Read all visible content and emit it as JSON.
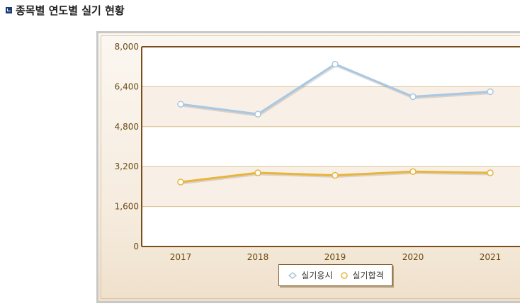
{
  "page": {
    "title": "종목별 연도별 실기 현황"
  },
  "chart_data": {
    "type": "line",
    "title": "",
    "xlabel": "",
    "ylabel": "",
    "categories": [
      "2017",
      "2018",
      "2019",
      "2020",
      "2021"
    ],
    "ylim": [
      0,
      8000
    ],
    "yticks": [
      "8,000",
      "6,400",
      "4,800",
      "3,200",
      "1,600",
      "0"
    ],
    "ytick_values": [
      8000,
      6400,
      4800,
      3200,
      1600,
      0
    ],
    "grid": true,
    "legend_position": "bottom",
    "series": [
      {
        "name": "실기응시",
        "values": [
          5700,
          5300,
          7300,
          6000,
          6200
        ],
        "color": "#a9c7e2"
      },
      {
        "name": "실기합격",
        "values": [
          2580,
          2950,
          2850,
          3000,
          2950
        ],
        "color": "#e8b43a"
      }
    ],
    "colors": {
      "axis": "#7a4d1a",
      "band": "#f8efe6",
      "gridline": "#d8c08e",
      "tick_text": "#6b4a12"
    }
  }
}
